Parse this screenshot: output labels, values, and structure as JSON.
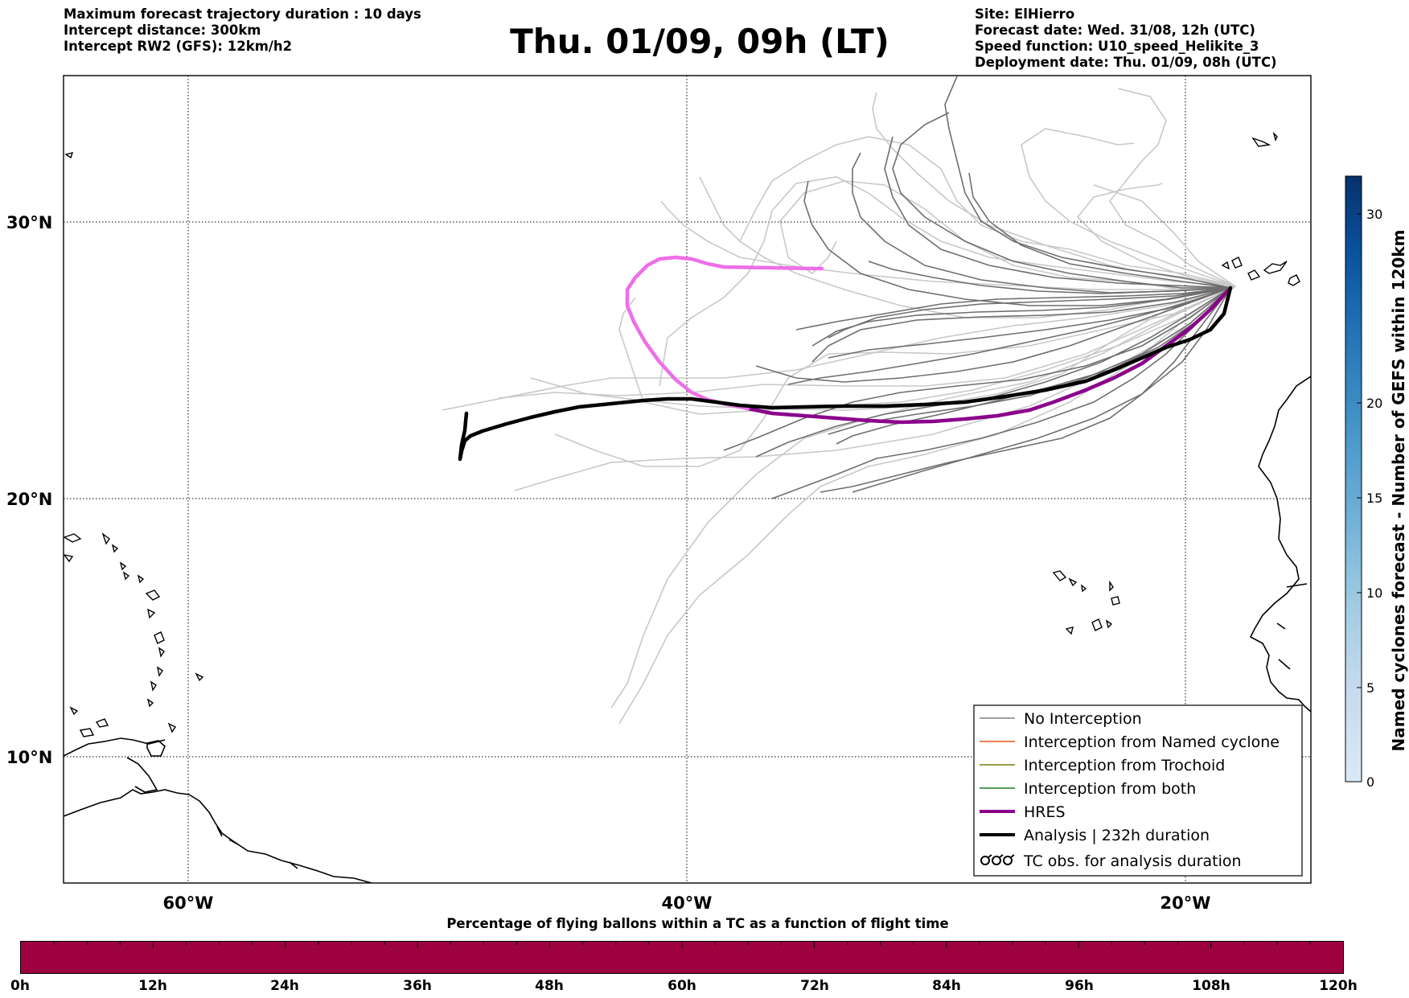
{
  "header": {
    "left_lines": [
      "Maximum forecast trajectory duration : 10 days",
      "Intercept distance: 300km",
      "Intercept RW2 (GFS):  12km/h2"
    ],
    "title": "Thu. 01/09, 09h (LT)",
    "right_lines": [
      "Site: ElHierro",
      "Forecast date: Wed. 31/08, 12h (UTC)",
      "Speed function: U10_speed_Helikite_3",
      "Deployment date: Thu. 01/09, 08h (UTC)"
    ]
  },
  "map": {
    "lat_labels": [
      "30°N",
      "20°N",
      "10°N"
    ],
    "lon_labels": [
      "60°W",
      "40°W",
      "20°W"
    ],
    "gridline_style": "dotted",
    "colors": {
      "no_interception": "#6e6e6e",
      "faded_ensemble": "#c8c8c8",
      "hres_early": "#8b008b",
      "hres_late": "#ee6ee8",
      "analysis": "#000000"
    }
  },
  "legend": {
    "items": [
      {
        "label": "No Interception",
        "color": "#808080"
      },
      {
        "label": "Interception from Named cyclone",
        "color": "#e8541e"
      },
      {
        "label": "Interception from Trochoid",
        "color": "#7b7d12"
      },
      {
        "label": "Interception from both",
        "color": "#1f7a1f"
      },
      {
        "label": "HRES",
        "color": "#8b008b"
      },
      {
        "label": "Analysis | 232h duration",
        "color": "#000000"
      },
      {
        "label": "TC obs. for analysis duration",
        "icon": "tc-symbol-icon"
      }
    ]
  },
  "colorbar": {
    "title": "Named cyclones forecast - Number of GEFS within 120km",
    "ticks": [
      "0",
      "5",
      "10",
      "15",
      "20",
      "30"
    ],
    "colors": [
      "#dbe9f6",
      "#c6dbef",
      "#9ecae1",
      "#6baed6",
      "#4292c6",
      "#2171b5",
      "#08519c",
      "#08306b"
    ]
  },
  "percentage_bar": {
    "title": "Percentage of flying ballons within a TC as a function of flight time",
    "color": "#9e0142",
    "ticks": [
      "0h",
      "12h",
      "24h",
      "36h",
      "48h",
      "60h",
      "72h",
      "84h",
      "96h",
      "108h",
      "120h"
    ]
  }
}
